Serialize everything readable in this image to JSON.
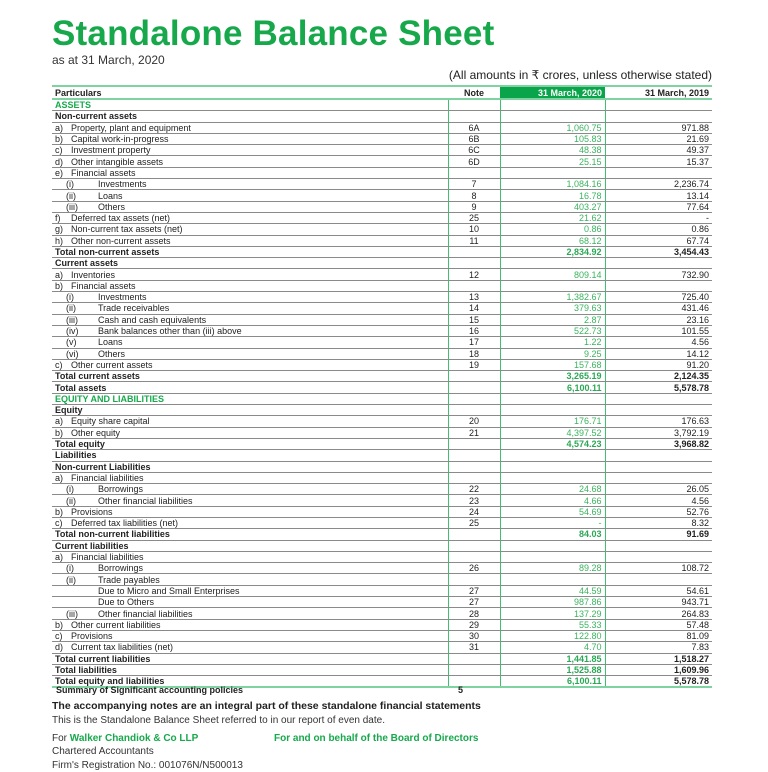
{
  "title": "Standalone Balance Sheet",
  "subtitle": "as at 31 March, 2020",
  "amounts_note": "(All amounts in ₹ crores, unless otherwise stated)",
  "colors": {
    "brand_green": "#16a84a",
    "header_fill": "#0aa54a"
  },
  "headers": {
    "particulars": "Particulars",
    "note": "Note",
    "y2020": "31 March, 2020",
    "y2019": "31 March, 2019"
  },
  "rows": [
    {
      "style": "green",
      "label": "ASSETS"
    },
    {
      "style": "bold",
      "label": "Non-current assets"
    },
    {
      "indent": 1,
      "prefix": "a)",
      "label": "Property, plant and equipment",
      "note": "6A",
      "y2020": "1,060.75",
      "y2019": "971.88"
    },
    {
      "indent": 1,
      "prefix": "b)",
      "label": "Capital work-in-progress",
      "note": "6B",
      "y2020": "105.83",
      "y2019": "21.69"
    },
    {
      "indent": 1,
      "prefix": "c)",
      "label": "Investment property",
      "note": "6C",
      "y2020": "48.38",
      "y2019": "49.37"
    },
    {
      "indent": 1,
      "prefix": "d)",
      "label": "Other intangible assets",
      "note": "6D",
      "y2020": "25.15",
      "y2019": "15.37"
    },
    {
      "indent": 1,
      "prefix": "e)",
      "label": "Financial assets"
    },
    {
      "indent": 2,
      "prefix": "(i)",
      "label": "Investments",
      "note": "7",
      "y2020": "1,084.16",
      "y2019": "2,236.74"
    },
    {
      "indent": 2,
      "prefix": "(ii)",
      "label": "Loans",
      "note": "8",
      "y2020": "16.78",
      "y2019": "13.14"
    },
    {
      "indent": 2,
      "prefix": "(iii)",
      "label": "Others",
      "note": "9",
      "y2020": "403.27",
      "y2019": "77.64"
    },
    {
      "indent": 1,
      "prefix": "f)",
      "label": "Deferred tax assets (net)",
      "note": "25",
      "y2020": "21.62",
      "y2019": "-"
    },
    {
      "indent": 1,
      "prefix": "g)",
      "label": "Non-current tax assets (net)",
      "note": "10",
      "y2020": "0.86",
      "y2019": "0.86"
    },
    {
      "indent": 1,
      "prefix": "h)",
      "label": "Other non-current assets",
      "note": "11",
      "y2020": "68.12",
      "y2019": "67.74"
    },
    {
      "style": "bold",
      "label": "Total non-current assets",
      "y2020": "2,834.92",
      "y2019": "3,454.43"
    },
    {
      "style": "bold",
      "label": "Current assets"
    },
    {
      "indent": 1,
      "prefix": "a)",
      "label": "Inventories",
      "note": "12",
      "y2020": "809.14",
      "y2019": "732.90"
    },
    {
      "indent": 1,
      "prefix": "b)",
      "label": "Financial assets"
    },
    {
      "indent": 2,
      "prefix": "(i)",
      "label": "Investments",
      "note": "13",
      "y2020": "1,382.67",
      "y2019": "725.40"
    },
    {
      "indent": 2,
      "prefix": "(ii)",
      "label": "Trade receivables",
      "note": "14",
      "y2020": "379.63",
      "y2019": "431.46"
    },
    {
      "indent": 2,
      "prefix": "(iii)",
      "label": "Cash and cash equivalents",
      "note": "15",
      "y2020": "2.87",
      "y2019": "23.16"
    },
    {
      "indent": 2,
      "prefix": "(iv)",
      "label": "Bank balances other than (iii) above",
      "note": "16",
      "y2020": "522.73",
      "y2019": "101.55"
    },
    {
      "indent": 2,
      "prefix": "(v)",
      "label": "Loans",
      "note": "17",
      "y2020": "1.22",
      "y2019": "4.56"
    },
    {
      "indent": 2,
      "prefix": "(vi)",
      "label": "Others",
      "note": "18",
      "y2020": "9.25",
      "y2019": "14.12"
    },
    {
      "indent": 1,
      "prefix": "c)",
      "label": "Other current assets",
      "note": "19",
      "y2020": "157.68",
      "y2019": "91.20"
    },
    {
      "style": "bold",
      "label": "Total current assets",
      "y2020": "3,265.19",
      "y2019": "2,124.35"
    },
    {
      "style": "bold",
      "label": "Total assets",
      "y2020": "6,100.11",
      "y2019": "5,578.78"
    },
    {
      "style": "green",
      "label": "EQUITY AND LIABILITIES"
    },
    {
      "style": "bold",
      "label": "Equity"
    },
    {
      "indent": 1,
      "prefix": "a)",
      "label": "Equity share capital",
      "note": "20",
      "y2020": "176.71",
      "y2019": "176.63"
    },
    {
      "indent": 1,
      "prefix": "b)",
      "label": "Other equity",
      "note": "21",
      "y2020": "4,397.52",
      "y2019": "3,792.19"
    },
    {
      "style": "bold",
      "label": "Total equity",
      "y2020": "4,574.23",
      "y2019": "3,968.82"
    },
    {
      "style": "bold",
      "label": "Liabilities"
    },
    {
      "style": "bold",
      "label": "Non-current Liabilities"
    },
    {
      "indent": 1,
      "prefix": "a)",
      "label": "Financial liabilities"
    },
    {
      "indent": 2,
      "prefix": "(i)",
      "label": "Borrowings",
      "note": "22",
      "y2020": "24.68",
      "y2019": "26.05"
    },
    {
      "indent": 2,
      "prefix": "(ii)",
      "label": "Other financial liabilities",
      "note": "23",
      "y2020": "4.66",
      "y2019": "4.56"
    },
    {
      "indent": 1,
      "prefix": "b)",
      "label": "Provisions",
      "note": "24",
      "y2020": "54.69",
      "y2019": "52.76"
    },
    {
      "indent": 1,
      "prefix": "c)",
      "label": "Deferred tax liabilities (net)",
      "note": "25",
      "y2020": "-",
      "y2019": "8.32"
    },
    {
      "style": "bold",
      "label": "Total non-current liabilities",
      "y2020": "84.03",
      "y2019": "91.69"
    },
    {
      "style": "bold",
      "label": "Current liabilities"
    },
    {
      "indent": 1,
      "prefix": "a)",
      "label": "Financial liabilities"
    },
    {
      "indent": 2,
      "prefix": "(i)",
      "label": "Borrowings",
      "note": "26",
      "y2020": "89.28",
      "y2019": "108.72"
    },
    {
      "indent": 2,
      "prefix": "(ii)",
      "label": "Trade payables"
    },
    {
      "indent": 3,
      "label": "Due to Micro and Small Enterprises",
      "note": "27",
      "y2020": "44.59",
      "y2019": "54.61"
    },
    {
      "indent": 3,
      "label": "Due to Others",
      "note": "27",
      "y2020": "987.86",
      "y2019": "943.71"
    },
    {
      "indent": 2,
      "prefix": "(iii)",
      "label": "Other financial liabilities",
      "note": "28",
      "y2020": "137.29",
      "y2019": "264.83"
    },
    {
      "indent": 1,
      "prefix": "b)",
      "label": "Other current liabilities",
      "note": "29",
      "y2020": "55.33",
      "y2019": "57.48"
    },
    {
      "indent": 1,
      "prefix": "c)",
      "label": "Provisions",
      "note": "30",
      "y2020": "122.80",
      "y2019": "81.09"
    },
    {
      "indent": 1,
      "prefix": "d)",
      "label": "Current tax liabilities (net)",
      "note": "31",
      "y2020": "4.70",
      "y2019": "7.83"
    },
    {
      "style": "bold",
      "label": "Total current liabilities",
      "y2020": "1,441.85",
      "y2019": "1,518.27"
    },
    {
      "style": "bold",
      "label": "Total liabilities",
      "y2020": "1,525.88",
      "y2019": "1,609.96"
    },
    {
      "style": "bold",
      "label": "Total equity and liabilities",
      "y2020": "6,100.11",
      "y2019": "5,578.78"
    }
  ],
  "summary": {
    "label": "Summary of Significant accounting policies",
    "note": "5"
  },
  "footer": {
    "notes_statement": "The accompanying notes are an integral part of these standalone financial statements",
    "reference": "This is the Standalone Balance Sheet referred to in our report of even date.",
    "for_prefix": "For",
    "auditor": "Walker Chandiok & Co LLP",
    "board": "For and on behalf of the Board of Directors",
    "auditor_type": "Chartered Accountants",
    "registration": "Firm's Registration No.: 001076N/N500013"
  }
}
